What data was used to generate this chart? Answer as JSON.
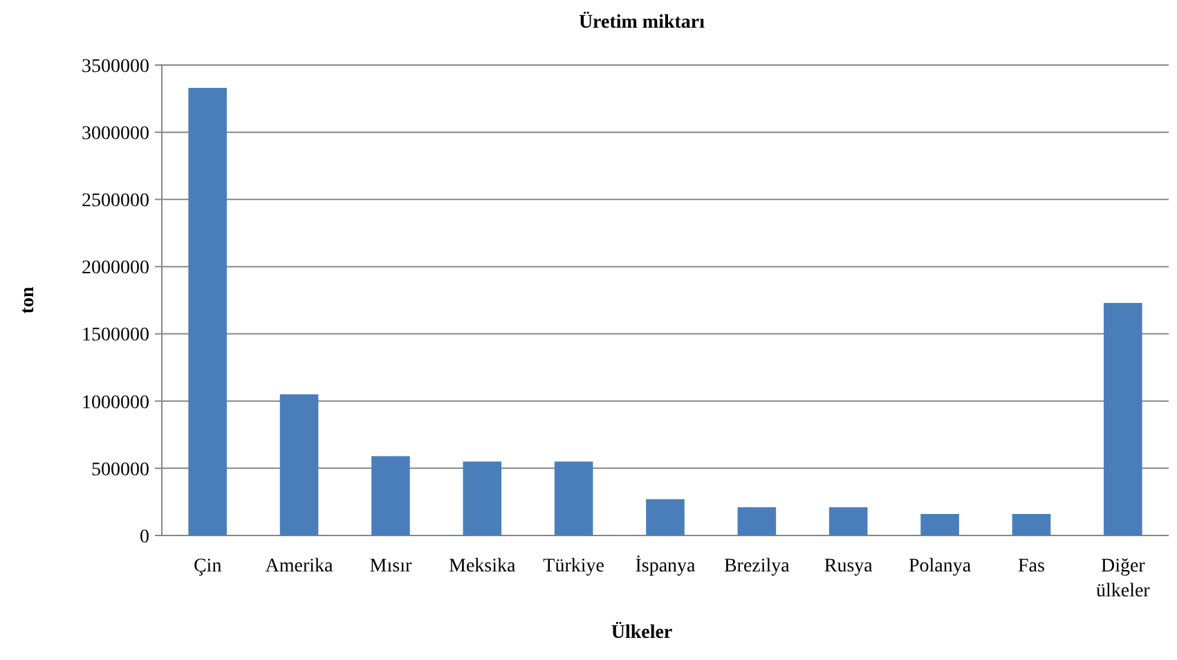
{
  "chart_data": {
    "type": "bar",
    "title": "Üretim miktarı",
    "xlabel": "Ülkeler",
    "ylabel": "ton",
    "categories": [
      "Çin",
      "Amerika",
      "Mısır",
      "Meksika",
      "Türkiye",
      "İspanya",
      "Brezilya",
      "Rusya",
      "Polanya",
      "Fas",
      "Diğer ülkeler"
    ],
    "values": [
      3330000,
      1050000,
      590000,
      550000,
      550000,
      270000,
      210000,
      210000,
      160000,
      160000,
      1730000
    ],
    "color": "#4a7ebb",
    "ylim": [
      0,
      3500000
    ],
    "yticks": [
      0,
      500000,
      1000000,
      1500000,
      2000000,
      2500000,
      3000000,
      3500000
    ],
    "grid": "y"
  }
}
